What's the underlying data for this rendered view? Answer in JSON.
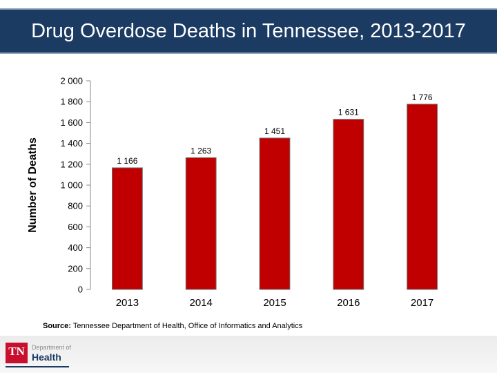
{
  "title": "Drug Overdose Deaths in Tennessee, 2013-2017",
  "chart_data": {
    "type": "bar",
    "title": "Drug Overdose Deaths in Tennessee, 2013-2017",
    "xlabel": "",
    "ylabel": "Number of Deaths",
    "categories": [
      "2013",
      "2014",
      "2015",
      "2016",
      "2017"
    ],
    "values": [
      1166,
      1263,
      1451,
      1631,
      1776
    ],
    "value_labels": [
      "1 166",
      "1 263",
      "1 451",
      "1 631",
      "1 776"
    ],
    "ylim": [
      0,
      2000
    ],
    "yticks": [
      0,
      200,
      400,
      600,
      800,
      1000,
      1200,
      1400,
      1600,
      1800,
      2000
    ],
    "ytick_labels": [
      "0",
      "200",
      "400",
      "600",
      "800",
      "1 000",
      "1 200",
      "1 400",
      "1 600",
      "1 800",
      "2 000"
    ],
    "grid": false,
    "bar_color": "#c00000"
  },
  "source": {
    "label": "Source:",
    "text": "Tennessee Department of Health, Office of Informatics and Analytics"
  },
  "logo": {
    "mark": "TN",
    "line1": "Department of",
    "line2": "Health",
    "color": "#c8102e"
  }
}
